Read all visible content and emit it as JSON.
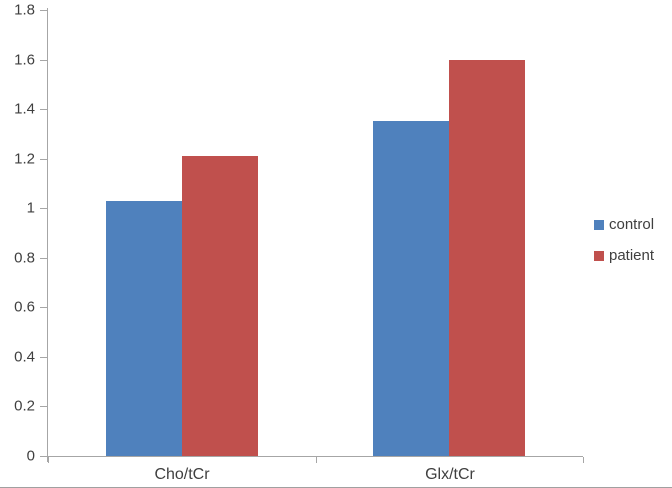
{
  "chart_data": {
    "type": "bar",
    "title": "",
    "xlabel": "",
    "ylabel": "",
    "categories": [
      "Cho/tCr",
      "Glx/tCr"
    ],
    "series": [
      {
        "name": "control",
        "color": "#4f81bd",
        "values": [
          1.03,
          1.35
        ]
      },
      {
        "name": "patient",
        "color": "#c0504d",
        "values": [
          1.21,
          1.6
        ]
      }
    ],
    "ylim": [
      0,
      1.8
    ],
    "ytick_step": 0.2,
    "yticks": [
      "0",
      "0.2",
      "0.4",
      "0.6",
      "0.8",
      "1",
      "1.2",
      "1.4",
      "1.6",
      "1.8"
    ],
    "grid": false,
    "legend_position": "right",
    "axis_line_color": "#a6a6a6",
    "text_color": "#3f3f3f",
    "background_color": "#ffffff"
  }
}
